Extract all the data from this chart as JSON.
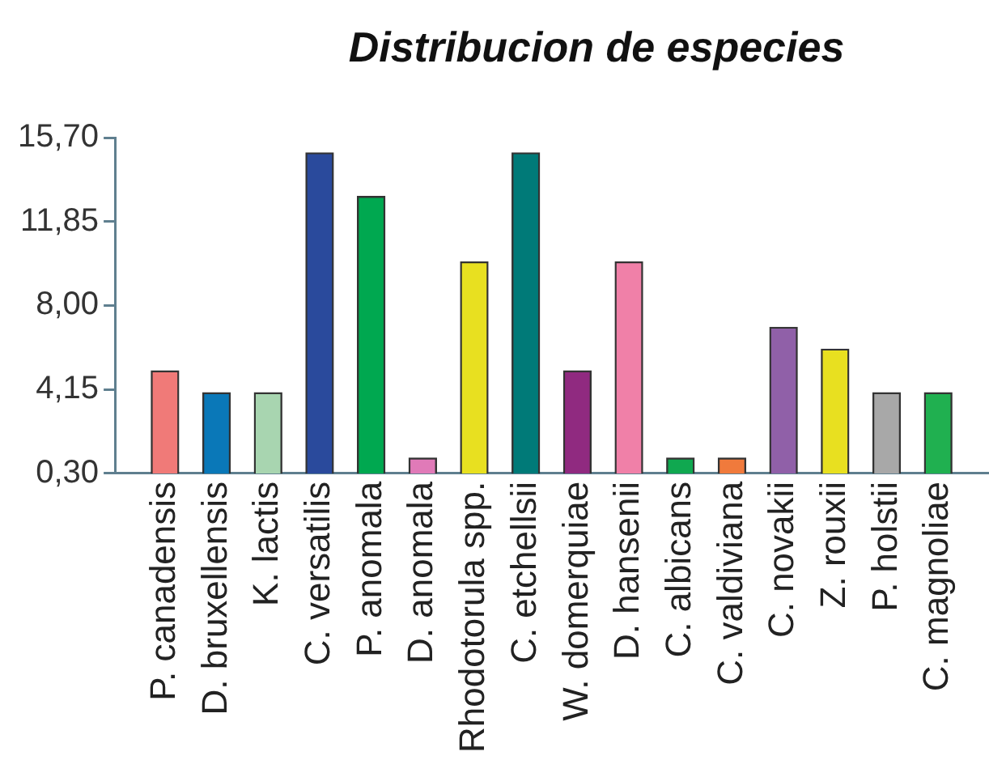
{
  "chart_data": {
    "type": "bar",
    "title": "Distribucion de especies",
    "categories": [
      "P. canadensis",
      "D. bruxellensis",
      "K. lactis",
      "C. versatilis",
      "P. anomala",
      "D. anomala",
      "Rhodotorula spp.",
      "C. etchellsii",
      "W. domerquiae",
      "D. hansenii",
      "C. albicans",
      "C. valdiviana",
      "C. novakii",
      "Z. rouxii",
      "P. holstii",
      "C. magnoliae"
    ],
    "values": [
      5,
      4,
      4,
      15,
      13,
      1,
      10,
      15,
      5,
      10,
      1,
      1,
      7,
      6,
      4,
      4
    ],
    "colors": [
      "#f07a78",
      "#0a78b8",
      "#a8d5b0",
      "#2a4a9c",
      "#00a850",
      "#e07ab8",
      "#e8e020",
      "#007a78",
      "#902a80",
      "#f080a8",
      "#10a850",
      "#f07a3c",
      "#9060a8",
      "#e8e020",
      "#a8a8a8",
      "#20b050"
    ],
    "ylim": [
      0.3,
      15.7
    ],
    "yticks": [
      {
        "value": 0.3,
        "label": "0,30"
      },
      {
        "value": 4.15,
        "label": "4,15"
      },
      {
        "value": 8,
        "label": "8,00"
      },
      {
        "value": 11.85,
        "label": "11,85"
      },
      {
        "value": 15.7,
        "label": "15,70"
      }
    ]
  }
}
